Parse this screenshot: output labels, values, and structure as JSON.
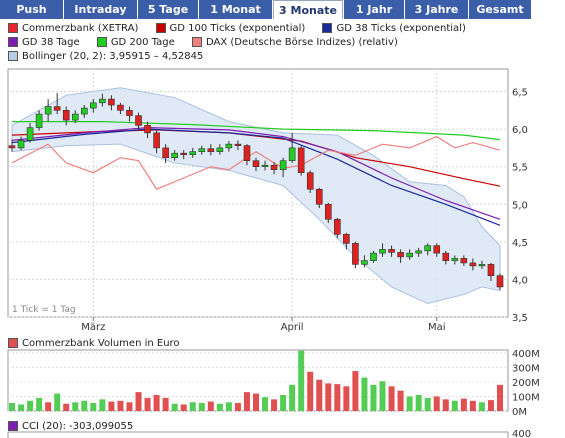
{
  "tabs": [
    {
      "label": "Push",
      "active": false
    },
    {
      "label": "Intraday",
      "active": false
    },
    {
      "label": "5 Tage",
      "active": false
    },
    {
      "label": "1 Monat",
      "active": false
    },
    {
      "label": "3 Monate",
      "active": true
    },
    {
      "label": "1 Jahr",
      "active": false
    },
    {
      "label": "3 Jahre",
      "active": false
    },
    {
      "label": "Gesamt",
      "active": false
    }
  ],
  "legend": [
    {
      "label": "Commerzbank (XETRA)",
      "color": "#e8262d"
    },
    {
      "label": "GD 100 Ticks (exponential)",
      "color": "#cc0000"
    },
    {
      "label": "GD 38 Ticks (exponential)",
      "color": "#1a2a9c"
    },
    {
      "label": "GD 38 Tage",
      "color": "#7a1fb0"
    },
    {
      "label": "GD 200 Tage",
      "color": "#22cc22"
    },
    {
      "label": "DAX (Deutsche Börse Indizes) (relativ)",
      "color": "#f08080"
    },
    {
      "label": "Bollinger (20, 2): 3,95915 – 4,52845",
      "color": "#b8cce8"
    }
  ],
  "tick_note": "1 Tick = 1 Tag",
  "volume_legend": {
    "label": "Commerzbank Volumen in Euro",
    "color": "#e05050"
  },
  "cci_legend": {
    "label": "CCI (20): -303,099055",
    "color": "#7a1fb0"
  },
  "chart_data": [
    {
      "type": "candlestick",
      "title": "Commerzbank (XETRA)",
      "x_tick_labels": [
        "März",
        "April",
        "Mai"
      ],
      "y_ticks": [
        3.5,
        4.0,
        4.5,
        5.0,
        5.5,
        6.0,
        6.5
      ],
      "y_tick_labels": [
        "3,5",
        "4,0",
        "4,5",
        "5,0",
        "5,5",
        "6,0",
        "6,5"
      ],
      "ylim": [
        3.5,
        6.8
      ],
      "grid": true,
      "candles": [
        [
          5.78,
          5.75,
          5.85,
          5.7
        ],
        [
          5.75,
          5.85,
          5.9,
          5.72
        ],
        [
          5.85,
          6.02,
          6.08,
          5.82
        ],
        [
          6.02,
          6.2,
          6.25,
          5.98
        ],
        [
          6.2,
          6.3,
          6.4,
          6.1
        ],
        [
          6.3,
          6.25,
          6.48,
          6.2
        ],
        [
          6.25,
          6.12,
          6.3,
          6.05
        ],
        [
          6.12,
          6.2,
          6.25,
          6.08
        ],
        [
          6.2,
          6.28,
          6.32,
          6.15
        ],
        [
          6.28,
          6.35,
          6.4,
          6.22
        ],
        [
          6.35,
          6.4,
          6.47,
          6.3
        ],
        [
          6.4,
          6.32,
          6.45,
          6.25
        ],
        [
          6.32,
          6.25,
          6.35,
          6.2
        ],
        [
          6.25,
          6.18,
          6.3,
          6.1
        ],
        [
          6.18,
          6.05,
          6.22,
          5.98
        ],
        [
          6.05,
          5.95,
          6.1,
          5.88
        ],
        [
          5.95,
          5.75,
          5.98,
          5.68
        ],
        [
          5.75,
          5.62,
          5.8,
          5.55
        ],
        [
          5.62,
          5.68,
          5.72,
          5.58
        ],
        [
          5.68,
          5.66,
          5.72,
          5.6
        ],
        [
          5.66,
          5.7,
          5.75,
          5.62
        ],
        [
          5.7,
          5.74,
          5.78,
          5.66
        ],
        [
          5.74,
          5.7,
          5.8,
          5.65
        ],
        [
          5.7,
          5.75,
          5.8,
          5.66
        ],
        [
          5.75,
          5.8,
          5.84,
          5.7
        ],
        [
          5.8,
          5.78,
          5.85,
          5.72
        ],
        [
          5.78,
          5.58,
          5.8,
          5.52
        ],
        [
          5.58,
          5.5,
          5.62,
          5.44
        ],
        [
          5.5,
          5.52,
          5.58,
          5.45
        ],
        [
          5.52,
          5.46,
          5.56,
          5.4
        ],
        [
          5.46,
          5.58,
          5.62,
          5.36
        ],
        [
          5.58,
          5.75,
          5.95,
          5.55
        ],
        [
          5.75,
          5.42,
          5.78,
          5.38
        ],
        [
          5.42,
          5.2,
          5.45,
          5.15
        ],
        [
          5.2,
          5.0,
          5.22,
          4.95
        ],
        [
          5.0,
          4.8,
          5.02,
          4.75
        ],
        [
          4.8,
          4.6,
          4.82,
          4.55
        ],
        [
          4.6,
          4.48,
          4.62,
          4.4
        ],
        [
          4.48,
          4.2,
          4.5,
          4.15
        ],
        [
          4.2,
          4.25,
          4.32,
          4.16
        ],
        [
          4.25,
          4.35,
          4.38,
          4.22
        ],
        [
          4.35,
          4.4,
          4.48,
          4.3
        ],
        [
          4.4,
          4.36,
          4.45,
          4.3
        ],
        [
          4.36,
          4.3,
          4.4,
          4.22
        ],
        [
          4.3,
          4.35,
          4.4,
          4.26
        ],
        [
          4.35,
          4.38,
          4.42,
          4.3
        ],
        [
          4.38,
          4.45,
          4.48,
          4.32
        ],
        [
          4.45,
          4.35,
          4.48,
          4.3
        ],
        [
          4.35,
          4.25,
          4.38,
          4.2
        ],
        [
          4.25,
          4.28,
          4.32,
          4.2
        ],
        [
          4.28,
          4.22,
          4.32,
          4.18
        ],
        [
          4.22,
          4.18,
          4.28,
          4.12
        ],
        [
          4.18,
          4.2,
          4.25,
          4.14
        ],
        [
          4.2,
          4.05,
          4.22,
          3.98
        ],
        [
          4.05,
          3.9,
          4.08,
          3.86
        ]
      ],
      "series": [
        {
          "name": "GD 200 Tage",
          "color": "#22cc22",
          "values": [
            [
              0,
              6.1
            ],
            [
              10,
              6.1
            ],
            [
              20,
              6.06
            ],
            [
              30,
              6.0
            ],
            [
              40,
              5.98
            ],
            [
              50,
              5.92
            ],
            [
              54,
              5.86
            ]
          ]
        },
        {
          "name": "GD 100 Ticks (exponential)",
          "color": "#cc0000",
          "values": [
            [
              0,
              5.92
            ],
            [
              10,
              5.97
            ],
            [
              16,
              5.99
            ],
            [
              24,
              5.95
            ],
            [
              32,
              5.84
            ],
            [
              38,
              5.62
            ],
            [
              44,
              5.5
            ],
            [
              50,
              5.34
            ],
            [
              54,
              5.24
            ]
          ]
        },
        {
          "name": "GD 38 Ticks (exponential)",
          "color": "#1a2a9c",
          "values": [
            [
              0,
              5.82
            ],
            [
              8,
              5.93
            ],
            [
              15,
              6.0
            ],
            [
              24,
              5.95
            ],
            [
              30,
              5.88
            ],
            [
              36,
              5.6
            ],
            [
              42,
              5.25
            ],
            [
              48,
              5.0
            ],
            [
              54,
              4.72
            ]
          ]
        },
        {
          "name": "GD 38 Tage",
          "color": "#7a1fb0",
          "values": [
            [
              0,
              5.85
            ],
            [
              8,
              5.95
            ],
            [
              15,
              6.02
            ],
            [
              24,
              5.99
            ],
            [
              30,
              5.9
            ],
            [
              36,
              5.7
            ],
            [
              42,
              5.35
            ],
            [
              48,
              5.05
            ],
            [
              54,
              4.8
            ]
          ]
        },
        {
          "name": "DAX (Deutsche Börse Indizes) (relativ)",
          "color": "#f08080",
          "values": [
            [
              0,
              5.55
            ],
            [
              4,
              5.8
            ],
            [
              6,
              5.55
            ],
            [
              9,
              5.42
            ],
            [
              12,
              5.62
            ],
            [
              14,
              5.58
            ],
            [
              16,
              5.2
            ],
            [
              19,
              5.35
            ],
            [
              22,
              5.5
            ],
            [
              24,
              5.46
            ],
            [
              27,
              5.7
            ],
            [
              30,
              5.48
            ],
            [
              32,
              5.52
            ],
            [
              35,
              5.72
            ],
            [
              38,
              5.65
            ],
            [
              41,
              5.8
            ],
            [
              44,
              5.75
            ],
            [
              47,
              5.9
            ],
            [
              49,
              5.75
            ],
            [
              51,
              5.82
            ],
            [
              54,
              5.72
            ]
          ]
        }
      ],
      "bollinger_upper": [
        [
          0,
          6.05
        ],
        [
          6,
          6.45
        ],
        [
          12,
          6.55
        ],
        [
          18,
          6.42
        ],
        [
          24,
          6.1
        ],
        [
          30,
          5.95
        ],
        [
          36,
          5.92
        ],
        [
          40,
          5.65
        ],
        [
          44,
          5.3
        ],
        [
          48,
          5.25
        ],
        [
          50,
          5.1
        ],
        [
          52,
          4.7
        ],
        [
          54,
          4.45
        ]
      ],
      "bollinger_lower": [
        [
          0,
          5.7
        ],
        [
          6,
          5.78
        ],
        [
          12,
          5.8
        ],
        [
          18,
          5.55
        ],
        [
          24,
          5.45
        ],
        [
          30,
          5.25
        ],
        [
          34,
          4.8
        ],
        [
          38,
          4.3
        ],
        [
          42,
          3.9
        ],
        [
          46,
          3.68
        ],
        [
          50,
          3.8
        ],
        [
          52,
          3.9
        ],
        [
          54,
          3.85
        ]
      ]
    },
    {
      "type": "bar",
      "title": "Commerzbank Volumen in Euro",
      "y_tick_labels": [
        "0M",
        "100M",
        "200M",
        "300M",
        "400M"
      ],
      "ylim": [
        0,
        420
      ],
      "values": [
        55,
        45,
        70,
        90,
        60,
        120,
        50,
        60,
        70,
        55,
        80,
        65,
        70,
        60,
        130,
        90,
        110,
        90,
        50,
        45,
        60,
        55,
        65,
        50,
        60,
        55,
        130,
        120,
        95,
        80,
        110,
        180,
        415,
        270,
        215,
        190,
        185,
        170,
        275,
        230,
        180,
        205,
        170,
        140,
        100,
        110,
        90,
        100,
        80,
        70,
        85,
        70,
        60,
        75,
        180
      ],
      "up": [
        1,
        1,
        1,
        1,
        0,
        1,
        0,
        1,
        1,
        1,
        1,
        0,
        0,
        0,
        0,
        0,
        0,
        0,
        1,
        0,
        1,
        1,
        0,
        1,
        1,
        0,
        0,
        0,
        1,
        0,
        1,
        1,
        1,
        0,
        0,
        0,
        0,
        0,
        0,
        1,
        1,
        1,
        0,
        0,
        1,
        1,
        1,
        0,
        0,
        1,
        0,
        0,
        1,
        0,
        0
      ]
    },
    {
      "type": "line",
      "title": "CCI (20): -303,099055",
      "y_tick_labels": [
        "400"
      ]
    }
  ]
}
